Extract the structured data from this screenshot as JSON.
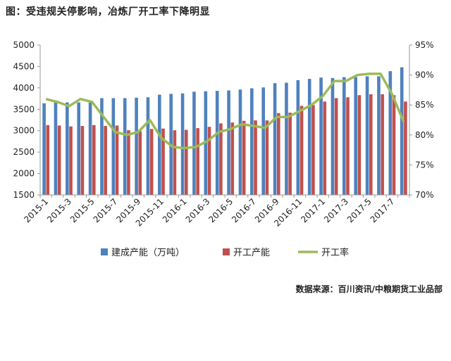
{
  "chart_title": "图：受违规关停影响，冶炼厂开工率下降明显",
  "source": "数据来源：百川资讯/中粮期货工业品部",
  "colors": {
    "capacity": "#4f81bd",
    "operating": "#c0504d",
    "rate": "#9bbb59",
    "axis": "#9a9a9a"
  },
  "chart_data": {
    "type": "bar",
    "categories": [
      "2015-1",
      "2015-2",
      "2015-3",
      "2015-4",
      "2015-5",
      "2015-6",
      "2015-7",
      "2015-8",
      "2015-9",
      "2015-10",
      "2015-11",
      "2015-12",
      "2016-1",
      "2016-2",
      "2016-3",
      "2016-4",
      "2016-5",
      "2016-6",
      "2016-7",
      "2016-8",
      "2016-9",
      "2016-10",
      "2016-11",
      "2016-12",
      "2017-1",
      "2017-2",
      "2017-3",
      "2017-4",
      "2017-5",
      "2017-6",
      "2017-7",
      "2017-8"
    ],
    "x_tick_labels": [
      "2015-1",
      "2015-3",
      "2015-5",
      "2015-7",
      "2015-9",
      "2015-11",
      "2016-1",
      "2016-3",
      "2016-5",
      "2016-7",
      "2016-9",
      "2016-11",
      "2017-1",
      "2017-3",
      "2017-5",
      "2017-7"
    ],
    "series": [
      {
        "name": "建成产能（万吨）",
        "type": "bar",
        "axis": "left",
        "values": [
          3640,
          3660,
          3660,
          3660,
          3660,
          3760,
          3760,
          3760,
          3770,
          3780,
          3840,
          3860,
          3870,
          3910,
          3920,
          3930,
          3940,
          3960,
          3990,
          4010,
          4110,
          4120,
          4180,
          4210,
          4240,
          4230,
          4250,
          4250,
          4270,
          4270,
          4390,
          4480
        ]
      },
      {
        "name": "开工产能",
        "type": "bar",
        "axis": "left",
        "values": [
          3130,
          3120,
          3100,
          3110,
          3130,
          3110,
          3120,
          3010,
          2990,
          3040,
          3050,
          3010,
          3020,
          3060,
          3090,
          3170,
          3190,
          3230,
          3240,
          3240,
          3410,
          3420,
          3580,
          3600,
          3680,
          3760,
          3780,
          3830,
          3850,
          3850,
          3830,
          3680
        ]
      },
      {
        "name": "开工率",
        "type": "line",
        "axis": "right",
        "values": [
          0.86,
          0.855,
          0.848,
          0.86,
          0.855,
          0.83,
          0.805,
          0.8,
          0.805,
          0.825,
          0.795,
          0.78,
          0.778,
          0.78,
          0.79,
          0.805,
          0.81,
          0.818,
          0.815,
          0.812,
          0.83,
          0.83,
          0.84,
          0.85,
          0.865,
          0.89,
          0.89,
          0.9,
          0.902,
          0.902,
          0.868,
          0.822
        ]
      }
    ],
    "y_left": {
      "min": 1500,
      "max": 5000,
      "step": 500,
      "ticks": [
        "5000",
        "4500",
        "4000",
        "3500",
        "3000",
        "2500",
        "2000",
        "1500"
      ]
    },
    "y_right": {
      "min": 0.7,
      "max": 0.95,
      "step": 0.05,
      "ticks": [
        "95%",
        "90%",
        "85%",
        "80%",
        "75%",
        "70%"
      ]
    },
    "grid": false,
    "legend_position": "bottom"
  }
}
